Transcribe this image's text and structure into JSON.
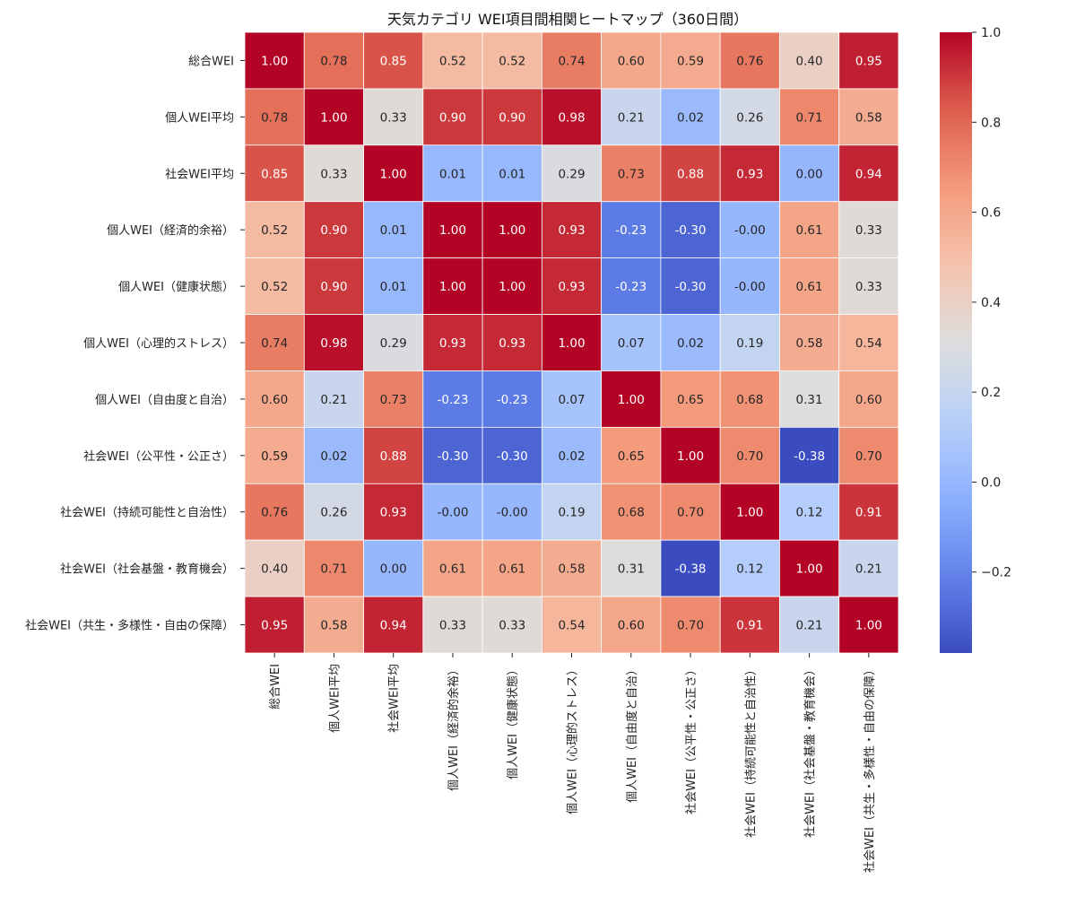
{
  "chart_data": {
    "type": "heatmap",
    "title": "天気カテゴリ WEI項目間相関ヒートマップ（360日間）",
    "labels": [
      "総合WEI",
      "個人WEI平均",
      "社会WEI平均",
      "個人WEI（経済的余裕）",
      "個人WEI（健康状態）",
      "個人WEI（心理的ストレス）",
      "個人WEI（自由度と自治）",
      "社会WEI（公平性・公正さ）",
      "社会WEI（持続可能性と自治性）",
      "社会WEI（社会基盤・教育機会）",
      "社会WEI（共生・多様性・自由の保障）"
    ],
    "values": [
      [
        "1.00",
        "0.78",
        "0.85",
        "0.52",
        "0.52",
        "0.74",
        "0.60",
        "0.59",
        "0.76",
        "0.40",
        "0.95"
      ],
      [
        "0.78",
        "1.00",
        "0.33",
        "0.90",
        "0.90",
        "0.98",
        "0.21",
        "0.02",
        "0.26",
        "0.71",
        "0.58"
      ],
      [
        "0.85",
        "0.33",
        "1.00",
        "0.01",
        "0.01",
        "0.29",
        "0.73",
        "0.88",
        "0.93",
        "0.00",
        "0.94"
      ],
      [
        "0.52",
        "0.90",
        "0.01",
        "1.00",
        "1.00",
        "0.93",
        "-0.23",
        "-0.30",
        "-0.00",
        "0.61",
        "0.33"
      ],
      [
        "0.52",
        "0.90",
        "0.01",
        "1.00",
        "1.00",
        "0.93",
        "-0.23",
        "-0.30",
        "-0.00",
        "0.61",
        "0.33"
      ],
      [
        "0.74",
        "0.98",
        "0.29",
        "0.93",
        "0.93",
        "1.00",
        "0.07",
        "0.02",
        "0.19",
        "0.58",
        "0.54"
      ],
      [
        "0.60",
        "0.21",
        "0.73",
        "-0.23",
        "-0.23",
        "0.07",
        "1.00",
        "0.65",
        "0.68",
        "0.31",
        "0.60"
      ],
      [
        "0.59",
        "0.02",
        "0.88",
        "-0.30",
        "-0.30",
        "0.02",
        "0.65",
        "1.00",
        "0.70",
        "-0.38",
        "0.70"
      ],
      [
        "0.76",
        "0.26",
        "0.93",
        "-0.00",
        "-0.00",
        "0.19",
        "0.68",
        "0.70",
        "1.00",
        "0.12",
        "0.91"
      ],
      [
        "0.40",
        "0.71",
        "0.00",
        "0.61",
        "0.61",
        "0.58",
        "0.31",
        "-0.38",
        "0.12",
        "1.00",
        "0.21"
      ],
      [
        "0.95",
        "0.58",
        "0.94",
        "0.33",
        "0.33",
        "0.54",
        "0.60",
        "0.70",
        "0.91",
        "0.21",
        "1.00"
      ]
    ],
    "colorbar": {
      "colormap": "coolwarm",
      "vmin": -0.38,
      "vmax": 1.0,
      "ticks": [
        1.0,
        0.8,
        0.6,
        0.4,
        0.2,
        0.0,
        -0.2
      ],
      "tick_labels": [
        "1.0",
        "0.8",
        "0.6",
        "0.4",
        "0.2",
        "0.0",
        "−0.2"
      ]
    }
  }
}
